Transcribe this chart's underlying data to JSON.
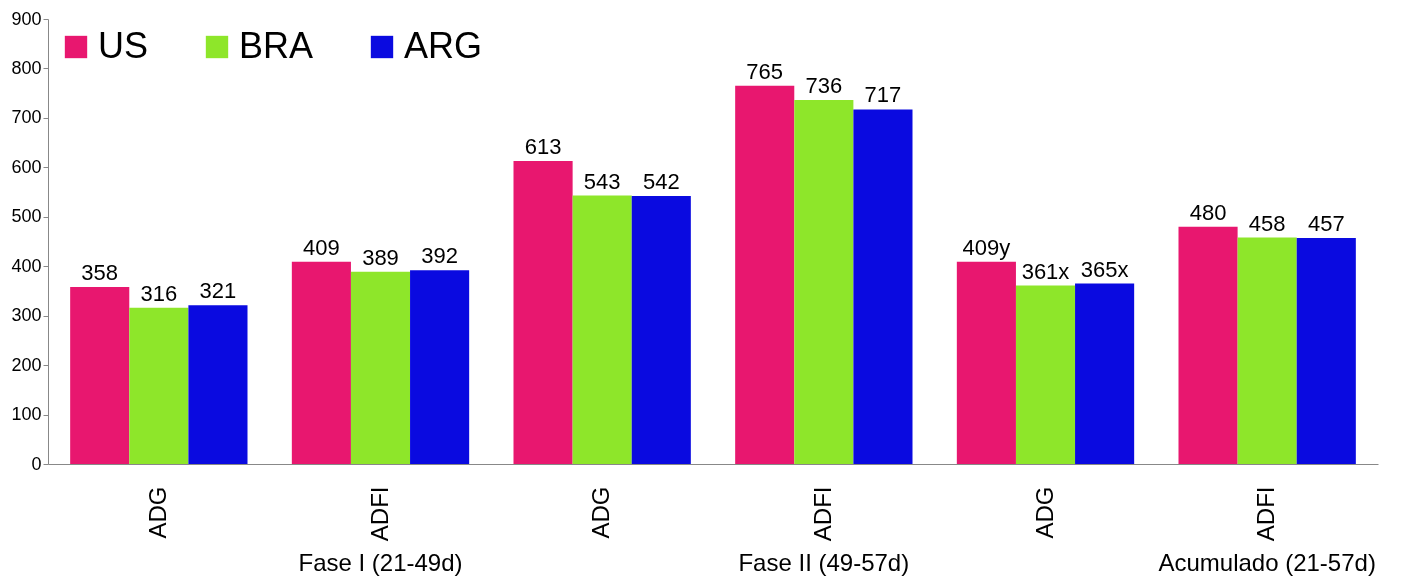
{
  "chart_data": {
    "type": "bar",
    "categories": [
      "ADG",
      "ADFI",
      "ADG",
      "ADFI",
      "ADG",
      "ADFI"
    ],
    "annotations": [
      "Fase I (21-49d)",
      "Fase II (49-57d)",
      "Acumulado (21-57d)"
    ],
    "series": [
      {
        "name": "US",
        "color": "#e8176f",
        "values": [
          358,
          409,
          613,
          765,
          409,
          480
        ],
        "value_labels": [
          "358",
          "409",
          "613",
          "765",
          "409y",
          "480"
        ]
      },
      {
        "name": "BRA",
        "color": "#8ee62a",
        "values": [
          316,
          389,
          543,
          736,
          361,
          458
        ],
        "value_labels": [
          "316",
          "389",
          "543",
          "736",
          "361x",
          "458"
        ]
      },
      {
        "name": "ARG",
        "color": "#0a0ae0",
        "values": [
          321,
          392,
          542,
          717,
          365,
          457
        ],
        "value_labels": [
          "321",
          "392",
          "542",
          "717",
          "365x",
          "457"
        ]
      }
    ],
    "ylim": [
      0,
      900
    ],
    "yticks": [
      0,
      100,
      200,
      300,
      400,
      500,
      600,
      700,
      800,
      900
    ],
    "grid": false,
    "legend": "top left"
  }
}
